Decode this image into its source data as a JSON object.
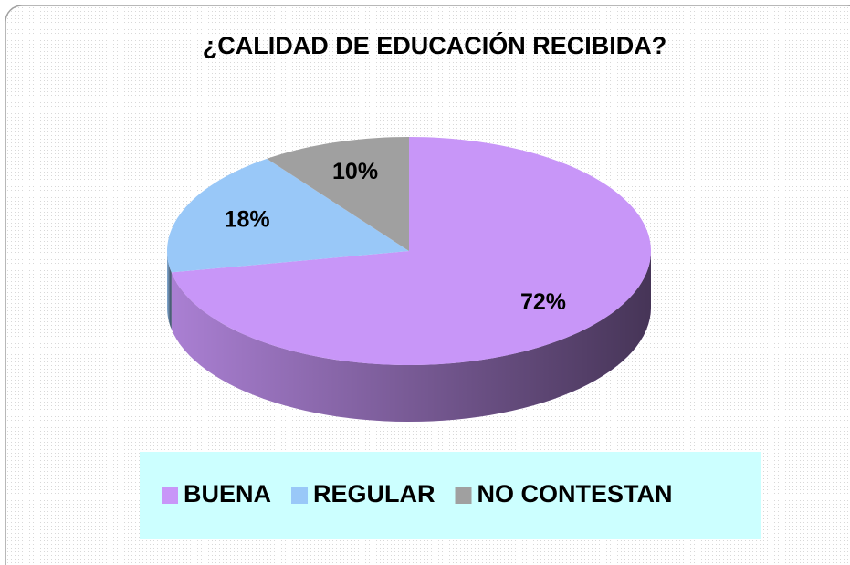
{
  "chart_data": {
    "type": "pie",
    "title": "¿CALIDAD DE EDUCACIÓN RECIBIDA?",
    "categories": [
      "BUENA",
      "REGULAR",
      "NO CONTESTAN"
    ],
    "values": [
      72,
      18,
      10
    ],
    "value_labels": [
      "72%",
      "18%",
      "10%"
    ],
    "colors": [
      "#c896f8",
      "#99c8f8",
      "#a0a0a0"
    ]
  }
}
